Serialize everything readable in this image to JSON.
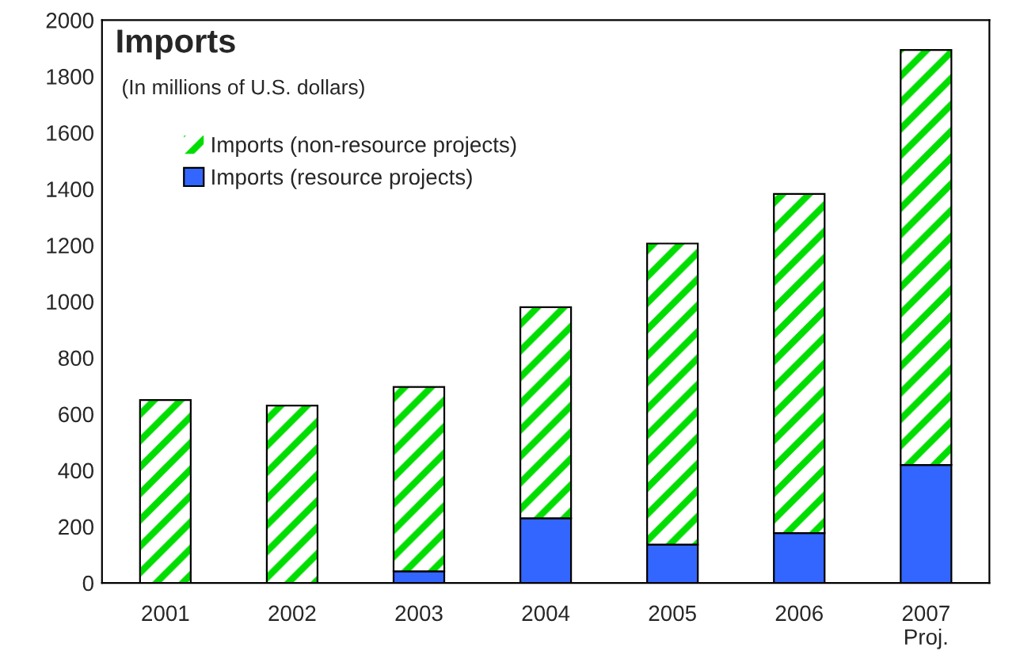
{
  "chart_data": {
    "type": "bar",
    "title": "Imports",
    "subtitle": "(In millions of U.S. dollars)",
    "categories": [
      "2001",
      "2002",
      "2003",
      "2004",
      "2005",
      "2006",
      "2007\nProj."
    ],
    "stacked": true,
    "series": [
      {
        "name": "Imports (resource projects)",
        "color": "#3366ff",
        "values": [
          0,
          0,
          41,
          230,
          136,
          177,
          419
        ]
      },
      {
        "name": "Imports (non-resource projects)",
        "color": "#00dd00",
        "values": [
          650,
          630,
          655,
          750,
          1070,
          1205,
          1475
        ]
      }
    ],
    "ylim": [
      0,
      2000
    ],
    "yticks": [
      0,
      200,
      400,
      600,
      800,
      1000,
      1200,
      1400,
      1600,
      1800,
      2000
    ],
    "grid": false,
    "legend": "top left"
  }
}
